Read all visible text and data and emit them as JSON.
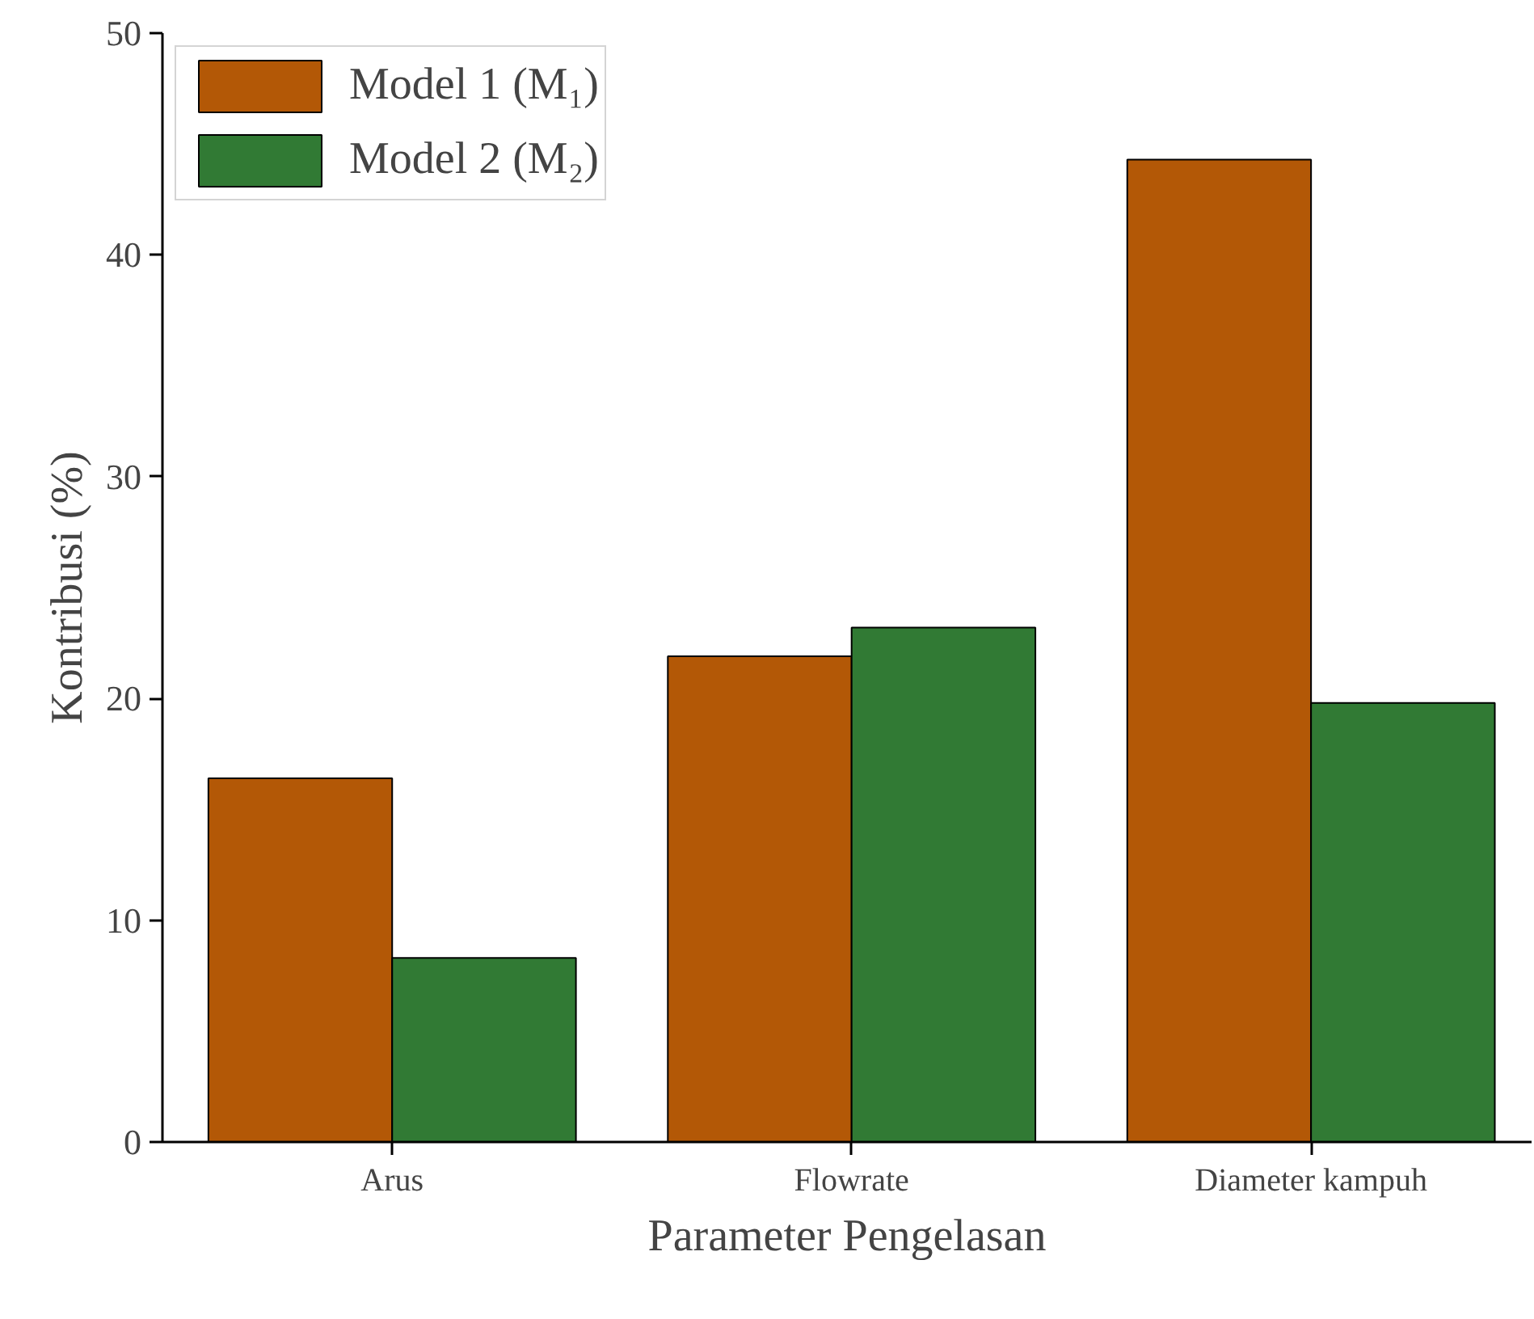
{
  "chart_data": {
    "type": "bar",
    "xlabel": "Parameter Pengelasan",
    "ylabel": "Kontribusi (%)",
    "categories": [
      "Arus",
      "Flowrate",
      "Diameter kampuh"
    ],
    "series": [
      {
        "name": "Model 1 (M₁)",
        "color": "#b35806",
        "values": [
          16.4,
          21.9,
          44.3
        ]
      },
      {
        "name": "Model 2 (M₂)",
        "color": "#317a34",
        "values": [
          8.3,
          23.2,
          19.8
        ]
      }
    ],
    "ylim": [
      0,
      50
    ],
    "yticks": [
      0,
      10,
      20,
      30,
      40,
      50
    ],
    "grid": false,
    "legend": "top left"
  }
}
